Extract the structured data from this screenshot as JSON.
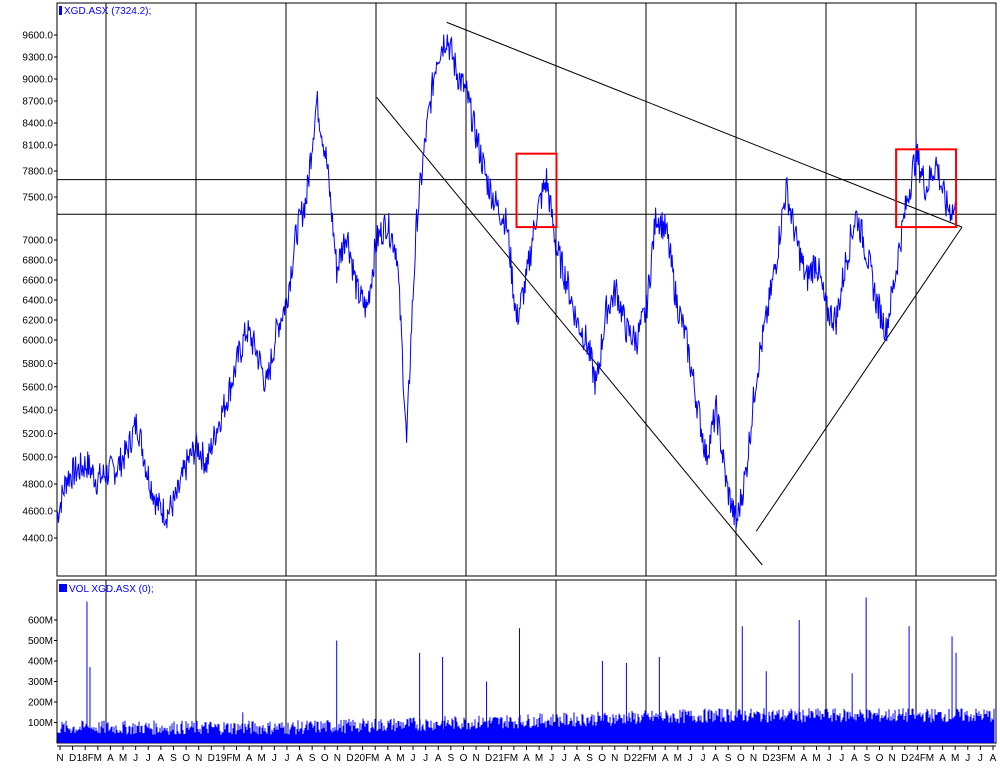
{
  "chart_data": [
    {
      "type": "line",
      "legend": "XGD.ASX (7324.2);",
      "series_color": "#0000ff",
      "y_ticks": [
        "4400.0",
        "4600.0",
        "4800.0",
        "5000.0",
        "5200.0",
        "5400.0",
        "5600.0",
        "5800.0",
        "6000.0",
        "6200.0",
        "6400.0",
        "6600.0",
        "6800.0",
        "7000.0",
        "7500.0",
        "7800.0",
        "8100.0",
        "8400.0",
        "8700.0",
        "9000.0",
        "9300.0",
        "9600.0"
      ],
      "price_points": [
        [
          "2017-11",
          4560
        ],
        [
          "2017-12",
          4850
        ],
        [
          "2018-01",
          4900
        ],
        [
          "2018-02",
          4950
        ],
        [
          "2018-03",
          4830
        ],
        [
          "2018-04",
          4880
        ],
        [
          "2018-05",
          4920
        ],
        [
          "2018-06",
          5050
        ],
        [
          "2018-07",
          5300
        ],
        [
          "2018-08",
          4900
        ],
        [
          "2018-09",
          4650
        ],
        [
          "2018-10",
          4580
        ],
        [
          "2018-11",
          4700
        ],
        [
          "2018-12",
          4950
        ],
        [
          "2019-01",
          5100
        ],
        [
          "2019-02",
          4950
        ],
        [
          "2019-03",
          5250
        ],
        [
          "2019-04",
          5500
        ],
        [
          "2019-05",
          5800
        ],
        [
          "2019-06",
          6100
        ],
        [
          "2019-07",
          5900
        ],
        [
          "2019-08",
          5600
        ],
        [
          "2019-09",
          6100
        ],
        [
          "2019-10",
          6400
        ],
        [
          "2019-11",
          7100
        ],
        [
          "2019-12",
          7500
        ],
        [
          "2020-01",
          8700
        ],
        [
          "2020-02",
          7900
        ],
        [
          "2020-03",
          6700
        ],
        [
          "2020-04",
          7100
        ],
        [
          "2020-05",
          6500
        ],
        [
          "2020-06",
          6300
        ],
        [
          "2020-07",
          7000
        ],
        [
          "2020-08",
          7200
        ],
        [
          "2020-09",
          6900
        ],
        [
          "2020-10",
          5100
        ],
        [
          "2020-11",
          7200
        ],
        [
          "2020-12",
          8300
        ],
        [
          "2021-01",
          9300
        ],
        [
          "2021-02",
          9600
        ],
        [
          "2021-03",
          9100
        ],
        [
          "2021-04",
          8800
        ],
        [
          "2021-05",
          8200
        ],
        [
          "2021-06",
          7700
        ],
        [
          "2021-07",
          7400
        ],
        [
          "2021-08",
          7200
        ],
        [
          "2021-09",
          6200
        ],
        [
          "2021-10",
          6600
        ],
        [
          "2021-11",
          7300
        ],
        [
          "2021-12",
          7700
        ],
        [
          "2022-01",
          6900
        ],
        [
          "2022-02",
          6600
        ],
        [
          "2022-03",
          6200
        ],
        [
          "2022-04",
          6000
        ],
        [
          "2022-05",
          5600
        ],
        [
          "2022-06",
          6300
        ],
        [
          "2022-07",
          6500
        ],
        [
          "2022-08",
          6100
        ],
        [
          "2022-09",
          6000
        ],
        [
          "2022-10",
          6300
        ],
        [
          "2022-11",
          7300
        ],
        [
          "2022-12",
          7100
        ],
        [
          "2023-01",
          6400
        ],
        [
          "2023-02",
          6000
        ],
        [
          "2023-03",
          5500
        ],
        [
          "2023-04",
          5000
        ],
        [
          "2023-05",
          5400
        ],
        [
          "2023-06",
          4800
        ],
        [
          "2023-07",
          4500
        ],
        [
          "2023-08",
          4900
        ],
        [
          "2023-09",
          5700
        ],
        [
          "2023-10",
          6200
        ],
        [
          "2023-11",
          6800
        ],
        [
          "2023-12",
          7600
        ],
        [
          "2024-01",
          7000
        ],
        [
          "2024-02",
          6600
        ],
        [
          "2024-03",
          6800
        ],
        [
          "2024-04",
          6300
        ],
        [
          "2024-05",
          6200
        ],
        [
          "2024-06",
          6800
        ],
        [
          "2024-07",
          7300
        ],
        [
          "2024-08",
          6900
        ],
        [
          "2024-09",
          6400
        ],
        [
          "2024-10",
          6100
        ],
        [
          "2024-11",
          6700
        ],
        [
          "2024-12",
          7400
        ],
        [
          "2025-01",
          8000
        ],
        [
          "2025-02",
          7600
        ],
        [
          "2025-03",
          7900
        ],
        [
          "2025-04",
          7400
        ],
        [
          "2025-05",
          7324
        ]
      ],
      "horizontal_lines": [
        7700,
        7300
      ],
      "trendlines": [
        {
          "from": [
            "2020-07",
            8750
          ],
          "to": [
            "2023-09",
            4200
          ]
        },
        {
          "from": [
            "2021-02",
            9750
          ],
          "to": [
            "2025-05",
            7150
          ]
        },
        {
          "from": [
            "2023-09",
            4450
          ],
          "to": [
            "2025-05",
            7150
          ]
        }
      ],
      "highlight_boxes": [
        {
          "x0": "2021-09",
          "x1": "2021-12",
          "y0": 7150,
          "y1": 8000
        },
        {
          "x0": "2024-11",
          "x1": "2025-04",
          "y0": 7150,
          "y1": 8050
        }
      ],
      "annotation_color": "#ff0000"
    },
    {
      "type": "bar",
      "legend": "VOL XGD.ASX (0);",
      "series_color": "#0000ff",
      "y_ticks": [
        "100M",
        "200M",
        "300M",
        "400M",
        "500M",
        "600M"
      ],
      "volume_spikes": [
        [
          "2018-02",
          690
        ],
        [
          "2018-02",
          370
        ],
        [
          "2019-05",
          150
        ],
        [
          "2020-03",
          500
        ],
        [
          "2020-11",
          440
        ],
        [
          "2021-01",
          420
        ],
        [
          "2021-06",
          300
        ],
        [
          "2021-09",
          560
        ],
        [
          "2022-05",
          400
        ],
        [
          "2022-08",
          390
        ],
        [
          "2022-11",
          420
        ],
        [
          "2023-07",
          570
        ],
        [
          "2023-10",
          350
        ],
        [
          "2024-01",
          600
        ],
        [
          "2024-06",
          340
        ],
        [
          "2024-08",
          710
        ],
        [
          "2024-12",
          570
        ],
        [
          "2025-04",
          520
        ],
        [
          "2025-05",
          440
        ]
      ]
    }
  ],
  "x_axis": {
    "labels": [
      "N",
      "D",
      "18F",
      "M",
      "A",
      "M",
      "J",
      "J",
      "A",
      "S",
      "O",
      "N",
      "D",
      "19F",
      "M",
      "A",
      "M",
      "J",
      "J",
      "A",
      "S",
      "O",
      "N",
      "D",
      "20F",
      "M",
      "A",
      "M",
      "J",
      "J",
      "A",
      "S",
      "O",
      "N",
      "D",
      "21F",
      "M",
      "A",
      "M",
      "J",
      "J",
      "A",
      "S",
      "O",
      "N",
      "D",
      "22F",
      "M",
      "A",
      "M",
      "J",
      "J",
      "A",
      "S",
      "O",
      "N",
      "D",
      "23F",
      "M",
      "A",
      "M",
      "J",
      "J",
      "A",
      "S",
      "O",
      "N",
      "D",
      "24F",
      "M",
      "A",
      "M",
      "J",
      "J",
      "A"
    ]
  }
}
